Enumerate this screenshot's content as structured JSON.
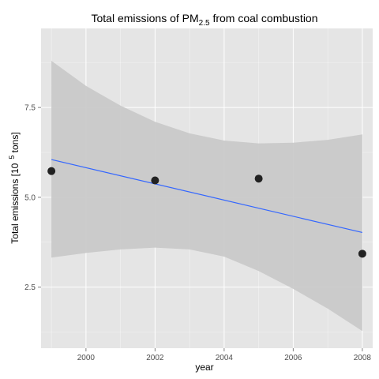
{
  "chart_data": {
    "type": "scatter",
    "title": {
      "prefix": "Total emissions of PM",
      "subscript": "2.5",
      "suffix": " from coal combustion"
    },
    "xlabel": "year",
    "ylabel": {
      "prefix": "Total emissions [10",
      "superscript": "5",
      "suffix": " tons]"
    },
    "xlim": [
      1998.7,
      2008.3
    ],
    "ylim": [
      0.8,
      9.7
    ],
    "x_ticks": [
      2000,
      2002,
      2004,
      2006,
      2008
    ],
    "x_tick_labels": [
      "2000",
      "2002",
      "2004",
      "2006",
      "2008"
    ],
    "y_ticks": [
      2.5,
      5.0,
      7.5
    ],
    "y_tick_labels": [
      "2.5",
      "5.0",
      "7.5"
    ],
    "points": [
      {
        "x": 1999,
        "y": 5.73
      },
      {
        "x": 2002,
        "y": 5.47
      },
      {
        "x": 2005,
        "y": 5.52
      },
      {
        "x": 2008,
        "y": 3.43
      }
    ],
    "fit_line": {
      "x": [
        1999,
        2008
      ],
      "y": [
        6.05,
        4.02
      ]
    },
    "confidence_band": {
      "x": [
        1999,
        2000,
        2001,
        2002,
        2003,
        2004,
        2005,
        2006,
        2007,
        2008
      ],
      "upper": [
        8.8,
        8.1,
        7.55,
        7.1,
        6.78,
        6.58,
        6.5,
        6.52,
        6.6,
        6.75
      ],
      "lower": [
        3.32,
        3.45,
        3.55,
        3.6,
        3.55,
        3.35,
        2.95,
        2.45,
        1.9,
        1.28
      ]
    },
    "grid": true,
    "legend": "none",
    "colors": {
      "panel": "#e5e5e5",
      "grid": "#ffffff",
      "band": "#c8c8c8",
      "line": "#3366ff",
      "point": "#222222"
    }
  }
}
